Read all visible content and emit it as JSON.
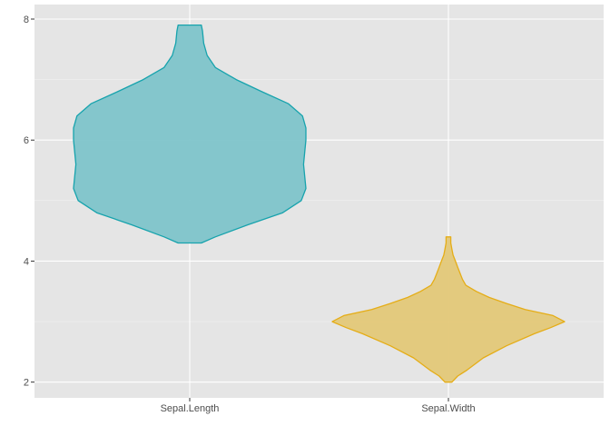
{
  "chart_data": {
    "type": "violin",
    "title": "",
    "xlabel": "",
    "ylabel": "",
    "ylim": [
      1.74,
      8.24
    ],
    "y_ticks": [
      2,
      4,
      6,
      8
    ],
    "y_tick_labels": [
      "2",
      "4",
      "6",
      "8"
    ],
    "categories": [
      "Sepal.Length",
      "Sepal.Width"
    ],
    "grid": true,
    "legend": "none",
    "colors": {
      "panel_bg": "#e5e5e5",
      "grid_major": "#ffffff",
      "grid_minor": "#f2f2f2",
      "axis_text": "#4d4d4d"
    },
    "series": [
      {
        "fill": "#7ec4ca",
        "stroke": "#17a3ad",
        "min": 4.3,
        "max": 7.9,
        "profile": [
          [
            4.3,
            0.1
          ],
          [
            4.4,
            0.22
          ],
          [
            4.6,
            0.5
          ],
          [
            4.8,
            0.8
          ],
          [
            5.0,
            0.96
          ],
          [
            5.2,
            1.0
          ],
          [
            5.4,
            0.99
          ],
          [
            5.6,
            0.98
          ],
          [
            5.8,
            0.99
          ],
          [
            6.0,
            1.0
          ],
          [
            6.2,
            1.0
          ],
          [
            6.4,
            0.97
          ],
          [
            6.6,
            0.85
          ],
          [
            6.8,
            0.62
          ],
          [
            7.0,
            0.4
          ],
          [
            7.2,
            0.22
          ],
          [
            7.4,
            0.15
          ],
          [
            7.6,
            0.12
          ],
          [
            7.8,
            0.11
          ],
          [
            7.9,
            0.1
          ]
        ]
      },
      {
        "fill": "#e3c878",
        "stroke": "#e5ad17",
        "min": 2.0,
        "max": 4.4,
        "profile": [
          [
            2.0,
            0.03
          ],
          [
            2.1,
            0.08
          ],
          [
            2.2,
            0.16
          ],
          [
            2.4,
            0.3
          ],
          [
            2.6,
            0.5
          ],
          [
            2.8,
            0.74
          ],
          [
            2.9,
            0.88
          ],
          [
            3.0,
            1.0
          ],
          [
            3.1,
            0.9
          ],
          [
            3.2,
            0.66
          ],
          [
            3.3,
            0.5
          ],
          [
            3.4,
            0.35
          ],
          [
            3.5,
            0.24
          ],
          [
            3.6,
            0.15
          ],
          [
            3.7,
            0.12
          ],
          [
            3.8,
            0.1
          ],
          [
            3.9,
            0.08
          ],
          [
            4.0,
            0.06
          ],
          [
            4.1,
            0.04
          ],
          [
            4.2,
            0.03
          ],
          [
            4.3,
            0.02
          ],
          [
            4.4,
            0.02
          ]
        ]
      }
    ]
  }
}
